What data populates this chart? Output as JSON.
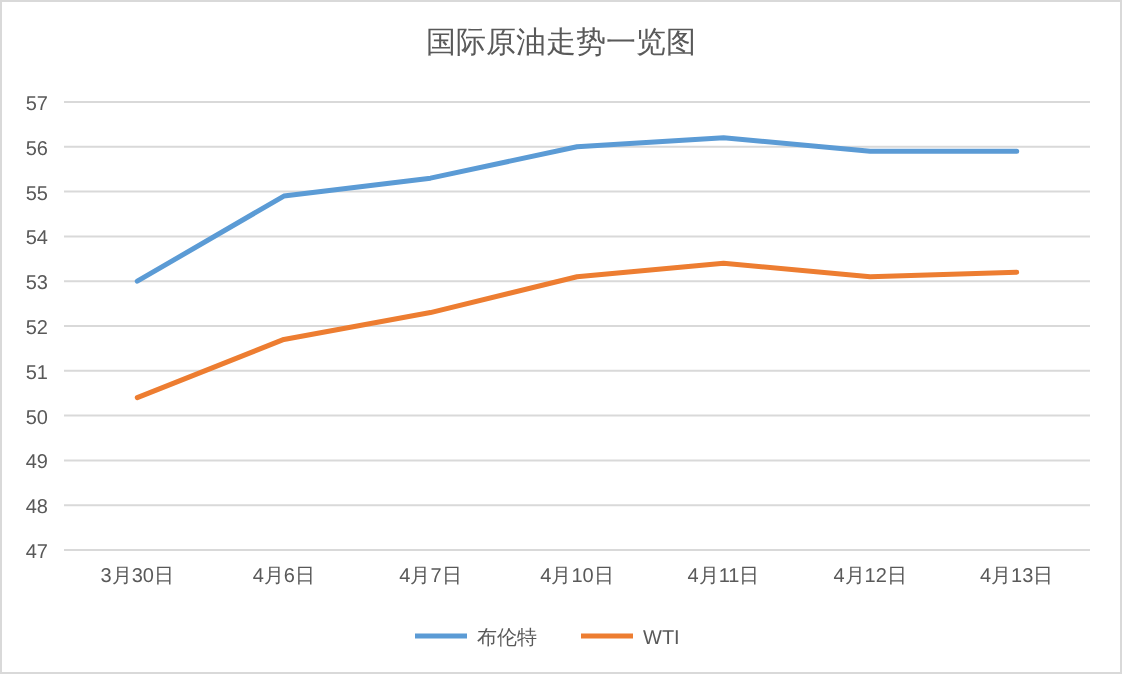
{
  "chart_data": {
    "type": "line",
    "title": "国际原油走势一览图",
    "categories": [
      "3月30日",
      "4月6日",
      "4月7日",
      "4月10日",
      "4月11日",
      "4月12日",
      "4月13日"
    ],
    "series": [
      {
        "name": "布伦特",
        "color": "#5b9bd5",
        "values": [
          53.0,
          54.9,
          55.3,
          56.0,
          56.2,
          55.9,
          55.9
        ]
      },
      {
        "name": "WTI",
        "color": "#ed7d31",
        "values": [
          50.4,
          51.7,
          52.3,
          53.1,
          53.4,
          53.1,
          53.2
        ]
      }
    ],
    "ylim": [
      47,
      57
    ],
    "yticks": [
      47,
      48,
      49,
      50,
      51,
      52,
      53,
      54,
      55,
      56,
      57
    ],
    "grid": "y",
    "legend": "bottom"
  }
}
